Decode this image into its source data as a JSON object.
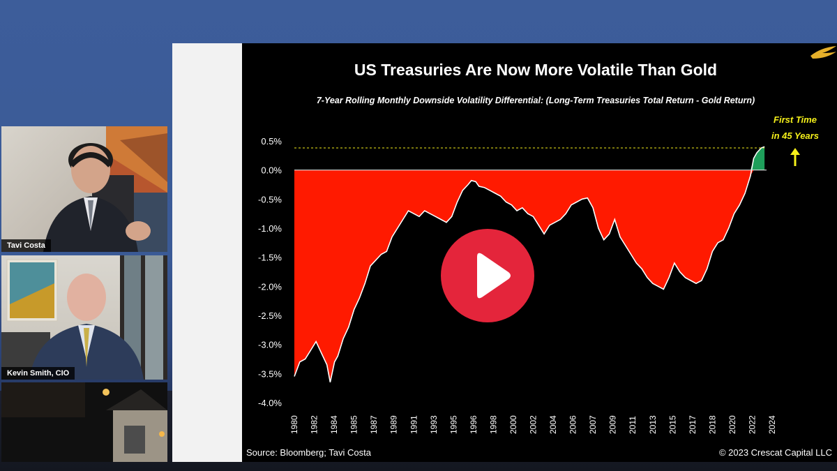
{
  "participants": [
    {
      "name": "Tavi Costa"
    },
    {
      "name": "Kevin Smith, CIO"
    }
  ],
  "slide": {
    "footer_source": "Source: Bloomberg; Tavi Costa",
    "footer_copyright": "© 2023 Crescat Capital LLC",
    "logo": "crescat-bird-logo"
  },
  "colors": {
    "area_negative": "#ff1a00",
    "area_positive": "#1e9e5a",
    "annotation": "#f5f01a",
    "play_button": "#e4253b"
  },
  "chart_data": {
    "type": "area",
    "title": "US Treasuries Are Now More Volatile Than Gold",
    "subtitle": "7-Year Rolling Monthly Downside Volatility Differential: (Long-Term Treasuries Total Return - Gold Return)",
    "xlabel": "",
    "ylabel": "",
    "x_ticks": [
      "1980",
      "1982",
      "1984",
      "1985",
      "1987",
      "1989",
      "1991",
      "1993",
      "1995",
      "1996",
      "1998",
      "2000",
      "2002",
      "2004",
      "2006",
      "2007",
      "2009",
      "2011",
      "2013",
      "2015",
      "2017",
      "2018",
      "2020",
      "2022",
      "2024"
    ],
    "y_ticks": [
      "0.5%",
      "0.0%",
      "-0.5%",
      "-1.0%",
      "-1.5%",
      "-2.0%",
      "-2.5%",
      "-3.0%",
      "-3.5%",
      "-4.0%"
    ],
    "ylim": [
      -4.0,
      0.5
    ],
    "xlim": [
      1980,
      2024
    ],
    "grid": false,
    "reference_level": 0.38,
    "annotation": "First Time in 45 Years",
    "annotation_line1": "First Time",
    "annotation_line2": "in 45 Years",
    "series": [
      {
        "x": [
          1980,
          1980.5,
          1981,
          1981.5,
          1982,
          1982.5,
          1983,
          1983.3,
          1983.7,
          1984,
          1984.5,
          1985,
          1985.5,
          1986,
          1986.5,
          1987,
          1987.5,
          1988,
          1988.5,
          1989,
          1989.5,
          1990,
          1990.5,
          1991,
          1991.5,
          1992,
          1992.5,
          1993,
          1993.5,
          1994,
          1994.5,
          1995,
          1995.5,
          1996,
          1996.3,
          1996.7,
          1997,
          1997.5,
          1998,
          1998.5,
          1999,
          1999.5,
          2000,
          2000.5,
          2001,
          2001.5,
          2002,
          2002.5,
          2003,
          2003.5,
          2004,
          2004.5,
          2005,
          2005.5,
          2006,
          2006.5,
          2007,
          2007.5,
          2008,
          2008.5,
          2009,
          2009.5,
          2010,
          2010.5,
          2011,
          2011.5,
          2012,
          2012.5,
          2013,
          2013.5,
          2014,
          2014.5,
          2015,
          2015.5,
          2016,
          2016.5,
          2017,
          2017.5,
          2018,
          2018.5,
          2019,
          2019.5,
          2020,
          2020.5,
          2021,
          2021.5,
          2022,
          2022.3,
          2022.6,
          2023,
          2023.3
        ],
        "y": [
          -3.55,
          -3.3,
          -3.25,
          -3.1,
          -2.95,
          -3.15,
          -3.35,
          -3.65,
          -3.3,
          -3.2,
          -2.9,
          -2.7,
          -2.4,
          -2.2,
          -1.95,
          -1.65,
          -1.55,
          -1.45,
          -1.4,
          -1.15,
          -1.0,
          -0.85,
          -0.7,
          -0.75,
          -0.8,
          -0.7,
          -0.75,
          -0.8,
          -0.85,
          -0.9,
          -0.8,
          -0.55,
          -0.35,
          -0.25,
          -0.18,
          -0.2,
          -0.28,
          -0.3,
          -0.35,
          -0.4,
          -0.45,
          -0.55,
          -0.6,
          -0.7,
          -0.65,
          -0.75,
          -0.8,
          -0.95,
          -1.1,
          -0.95,
          -0.9,
          -0.85,
          -0.75,
          -0.6,
          -0.55,
          -0.5,
          -0.48,
          -0.65,
          -1.0,
          -1.2,
          -1.1,
          -0.85,
          -1.15,
          -1.3,
          -1.45,
          -1.6,
          -1.7,
          -1.85,
          -1.95,
          -2.0,
          -2.05,
          -1.85,
          -1.6,
          -1.75,
          -1.85,
          -1.9,
          -1.95,
          -1.9,
          -1.7,
          -1.4,
          -1.25,
          -1.2,
          -1.0,
          -0.75,
          -0.6,
          -0.4,
          -0.1,
          0.2,
          0.3,
          0.38,
          0.4
        ]
      }
    ]
  }
}
